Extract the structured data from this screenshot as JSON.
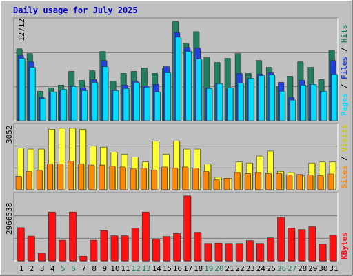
{
  "title": "Daily usage for July 2025",
  "colors": {
    "background": "#c0c0c0",
    "hits": "#1f7f5f",
    "files": "#2040e0",
    "pages": "#00ddff",
    "visits": "#ffff33",
    "sites": "#ff8800",
    "kbytes": "#ff1111",
    "title_text": "#0000cc",
    "weekend_label": "#208060"
  },
  "chart_data": [
    {
      "type": "bar",
      "panel": "hits-files-pages",
      "categories": [
        "1",
        "2",
        "3",
        "4",
        "5",
        "6",
        "7",
        "8",
        "9",
        "10",
        "11",
        "12",
        "13",
        "14",
        "15",
        "16",
        "17",
        "18",
        "19",
        "20",
        "21",
        "22",
        "23",
        "24",
        "25",
        "26",
        "27",
        "28",
        "29",
        "30",
        "31"
      ],
      "series": [
        {
          "name": "Hits",
          "values": [
            10500,
            9800,
            4300,
            4800,
            5200,
            7200,
            5900,
            7300,
            10100,
            5800,
            6900,
            7200,
            7700,
            6900,
            7600,
            14500,
            11300,
            13000,
            9200,
            8500,
            9100,
            9800,
            6900,
            8800,
            7800,
            5000,
            6500,
            8600,
            7800,
            6000,
            10300
          ]
        },
        {
          "name": "Files",
          "values": [
            9500,
            8600,
            3400,
            4200,
            4400,
            5100,
            4800,
            6000,
            8800,
            4500,
            5200,
            5800,
            5100,
            5300,
            7900,
            12900,
            10700,
            10600,
            4800,
            5400,
            4600,
            6900,
            6100,
            6800,
            7000,
            5600,
            3400,
            5900,
            5300,
            4300,
            8800
          ]
        },
        {
          "name": "Pages",
          "values": [
            9100,
            7800,
            3200,
            4200,
            4600,
            5000,
            4400,
            5600,
            7900,
            4400,
            4700,
            5600,
            4900,
            4200,
            7000,
            12200,
            10100,
            9000,
            4700,
            5400,
            4800,
            5500,
            6200,
            6600,
            6700,
            4300,
            3000,
            5200,
            5300,
            4300,
            6800
          ]
        }
      ],
      "ytick": 12712
    },
    {
      "type": "bar",
      "panel": "visits-sites",
      "categories": [
        "1",
        "2",
        "3",
        "4",
        "5",
        "6",
        "7",
        "8",
        "9",
        "10",
        "11",
        "12",
        "13",
        "14",
        "15",
        "16",
        "17",
        "18",
        "19",
        "20",
        "21",
        "22",
        "23",
        "24",
        "25",
        "26",
        "27",
        "28",
        "29",
        "30",
        "31"
      ],
      "series": [
        {
          "name": "Visits",
          "values": [
            2100,
            2050,
            2050,
            3050,
            3100,
            3100,
            3050,
            2200,
            2150,
            1900,
            1800,
            1650,
            1400,
            2450,
            1800,
            2450,
            2050,
            2050,
            1300,
            630,
            580,
            1400,
            1350,
            1700,
            1950,
            930,
            870,
            700,
            1350,
            1400,
            1400
          ]
        },
        {
          "name": "Sites",
          "values": [
            680,
            920,
            980,
            1300,
            1300,
            1450,
            1300,
            1250,
            1250,
            1200,
            1150,
            1050,
            1100,
            1000,
            1150,
            1100,
            1150,
            1100,
            920,
            500,
            580,
            870,
            820,
            870,
            820,
            830,
            750,
            770,
            750,
            710,
            800
          ]
        }
      ],
      "ytick": 3052
    },
    {
      "type": "bar",
      "panel": "kbytes",
      "categories": [
        "1",
        "2",
        "3",
        "4",
        "5",
        "6",
        "7",
        "8",
        "9",
        "10",
        "11",
        "12",
        "13",
        "14",
        "15",
        "16",
        "17",
        "18",
        "19",
        "20",
        "21",
        "22",
        "23",
        "24",
        "25",
        "26",
        "27",
        "28",
        "29",
        "30",
        "31"
      ],
      "series": [
        {
          "name": "KBytes",
          "values": [
            1850000,
            1380000,
            430000,
            2720000,
            1150000,
            2720000,
            260000,
            1150000,
            1680000,
            1400000,
            1400000,
            1820000,
            2720000,
            1210000,
            1360000,
            1520000,
            3620000,
            1590000,
            970000,
            990000,
            970000,
            970000,
            1130000,
            970000,
            1280000,
            2420000,
            1830000,
            1740000,
            1900000,
            940000,
            1430000
          ]
        }
      ],
      "ytick": 2966538
    }
  ],
  "x_axis": {
    "labels": [
      "1",
      "2",
      "3",
      "4",
      "5",
      "6",
      "7",
      "8",
      "9",
      "10",
      "11",
      "12",
      "13",
      "14",
      "15",
      "16",
      "17",
      "18",
      "19",
      "20",
      "21",
      "22",
      "23",
      "24",
      "25",
      "26",
      "27",
      "28",
      "29",
      "30",
      "31"
    ],
    "weekend_days": [
      "5",
      "6",
      "12",
      "13",
      "19",
      "20",
      "26",
      "27"
    ]
  },
  "legend_top": {
    "pages": "Pages",
    "files": "Files",
    "hits": "Hits",
    "sep": " / "
  },
  "legend_mid": {
    "sites": "Sites",
    "visits": "Visits",
    "sep": " / "
  },
  "legend_bottom": {
    "kbytes": "KBytes"
  }
}
